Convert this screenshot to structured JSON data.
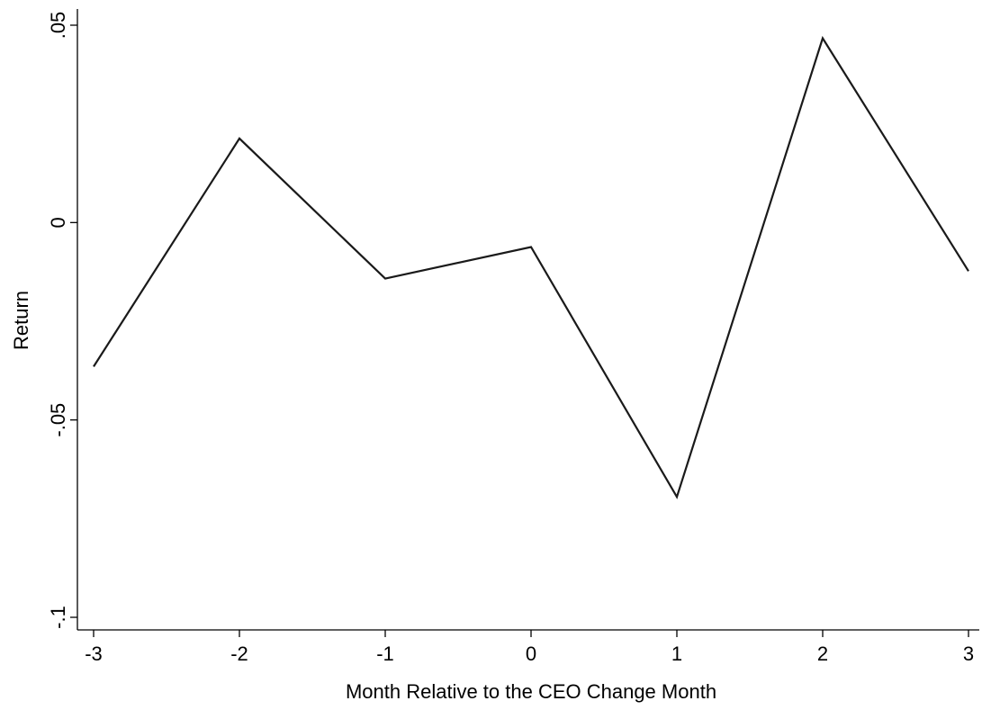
{
  "chart_data": {
    "type": "line",
    "title": "",
    "xlabel": "Month Relative to the CEO Change Month",
    "ylabel": "Return",
    "x": [
      -3,
      -2,
      -1,
      0,
      1,
      2,
      3
    ],
    "series": [
      {
        "values": [
          -0.0365,
          0.0213,
          -0.0142,
          -0.0062,
          -0.0695,
          0.0467,
          -0.0123
        ],
        "color": "#1a1a1a"
      }
    ],
    "xlim": [
      -3,
      3
    ],
    "ylim": [
      -0.1,
      0.05
    ],
    "xticks": [
      -3,
      -2,
      -1,
      0,
      1,
      2,
      3
    ],
    "xtick_labels": [
      "-3",
      "-2",
      "-1",
      "0",
      "1",
      "2",
      "3"
    ],
    "yticks": [
      -0.1,
      -0.05,
      0,
      0.05
    ],
    "ytick_labels": [
      "-.1",
      "-.05",
      "0",
      ".05"
    ],
    "grid": false,
    "legend": "none"
  }
}
